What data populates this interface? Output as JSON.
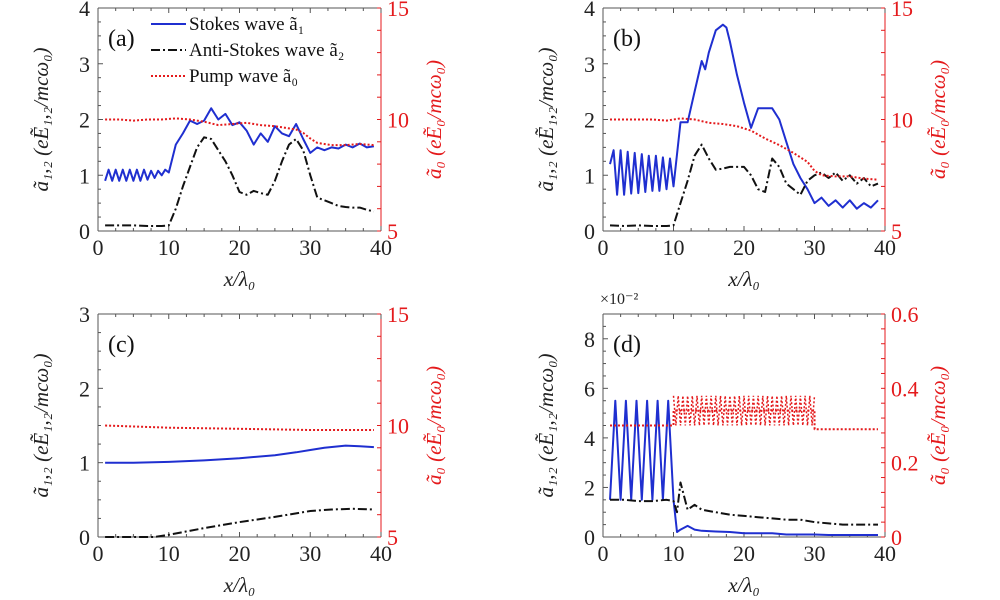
{
  "figure": {
    "legend": [
      {
        "label": "Stokes wave ã₁",
        "series": "stokes"
      },
      {
        "label": "Anti-Stokes wave ã₂",
        "series": "antistokes"
      },
      {
        "label": "Pump wave ã₀",
        "series": "pump"
      }
    ],
    "colors": {
      "stokes": "#1f2fd0",
      "antistokes": "#111111",
      "pump": "#e41a1c",
      "right_axis": "#e41a1c"
    },
    "xlabel": "x/λ₀",
    "ylabel_left": "ã₁,₂ (eẼ₁,₂/mcω₀)",
    "ylabel_right": "ã₀ (eẼ₀/mcω₀)"
  },
  "chart_data": [
    {
      "panel": "(a)",
      "type": "line",
      "xlim": [
        0,
        40
      ],
      "xticks": [
        0,
        10,
        20,
        30,
        40
      ],
      "ylim_left": [
        0,
        4
      ],
      "yticks_left": [
        0,
        1,
        2,
        3,
        4
      ],
      "ylim_right": [
        5,
        15
      ],
      "yticks_right": [
        5,
        10,
        15
      ],
      "xlabel": "x/λ₀",
      "ylabel": "ã₁,₂ (eẼ₁,₂/mcω₀)",
      "ylabel_right": "ã₀ (eẼ₀/mcω₀)",
      "legend": "top-left",
      "series": [
        {
          "name": "Stokes wave ã₁",
          "axis": "left",
          "style": "solid",
          "x": [
            1,
            1.5,
            2,
            2.5,
            3,
            3.5,
            4,
            4.5,
            5,
            5.5,
            6,
            6.5,
            7,
            7.5,
            8,
            8.5,
            9,
            9.5,
            10,
            11,
            12,
            13,
            14,
            15,
            16,
            17,
            18,
            19,
            20,
            21,
            22,
            23,
            24,
            25,
            26,
            27,
            28,
            29,
            30,
            31,
            32,
            33,
            34,
            35,
            36,
            37,
            38,
            39
          ],
          "y": [
            0.9,
            1.1,
            0.9,
            1.1,
            0.9,
            1.1,
            0.9,
            1.1,
            0.9,
            1.1,
            0.9,
            1.1,
            0.92,
            1.08,
            0.95,
            1.08,
            1.0,
            1.1,
            1.05,
            1.55,
            1.75,
            1.98,
            1.92,
            1.98,
            2.2,
            2.0,
            2.1,
            1.9,
            1.95,
            1.8,
            1.55,
            1.75,
            1.6,
            1.88,
            1.75,
            1.7,
            1.92,
            1.65,
            1.4,
            1.5,
            1.45,
            1.5,
            1.48,
            1.55,
            1.5,
            1.57,
            1.5,
            1.52
          ]
        },
        {
          "name": "Anti-Stokes wave ã₂",
          "axis": "left",
          "style": "dashdot",
          "x": [
            1,
            3,
            5,
            7,
            9,
            10,
            11,
            12,
            13,
            14,
            15,
            16,
            17,
            18,
            19,
            20,
            21,
            22,
            23,
            24,
            25,
            26,
            27,
            28,
            29,
            30,
            31,
            32,
            33,
            34,
            35,
            36,
            37,
            38,
            39
          ],
          "y": [
            0.1,
            0.1,
            0.1,
            0.09,
            0.09,
            0.1,
            0.4,
            0.8,
            1.15,
            1.5,
            1.68,
            1.65,
            1.45,
            1.25,
            1.0,
            0.7,
            0.65,
            0.72,
            0.68,
            0.65,
            0.9,
            1.25,
            1.55,
            1.65,
            1.45,
            1.0,
            0.6,
            0.55,
            0.5,
            0.45,
            0.43,
            0.42,
            0.42,
            0.38,
            0.35
          ]
        },
        {
          "name": "Pump wave ã₀",
          "axis": "right",
          "style": "dotted",
          "x": [
            1,
            3,
            5,
            7,
            9,
            11,
            13,
            15,
            17,
            19,
            21,
            23,
            25,
            27,
            28,
            29,
            30,
            31,
            33,
            35,
            37,
            39
          ],
          "y": [
            10.0,
            10.0,
            9.95,
            10.0,
            10.0,
            10.05,
            10.0,
            9.9,
            9.75,
            9.8,
            9.85,
            9.75,
            9.7,
            9.6,
            9.55,
            9.4,
            9.15,
            8.95,
            8.85,
            8.85,
            8.9,
            8.85
          ]
        }
      ]
    },
    {
      "panel": "(b)",
      "type": "line",
      "xlim": [
        0,
        40
      ],
      "xticks": [
        0,
        10,
        20,
        30,
        40
      ],
      "ylim_left": [
        0,
        4
      ],
      "yticks_left": [
        0,
        1,
        2,
        3,
        4
      ],
      "ylim_right": [
        5,
        15
      ],
      "yticks_right": [
        5,
        10,
        15
      ],
      "xlabel": "x/λ₀",
      "ylabel": "ã₁,₂ (eẼ₁,₂/mcω₀)",
      "ylabel_right": "ã₀ (eẼ₀/mcω₀)",
      "series": [
        {
          "name": "Stokes wave ã₁",
          "axis": "left",
          "style": "solid",
          "x": [
            1,
            1.5,
            2,
            2.5,
            3,
            3.5,
            4,
            4.5,
            5,
            5.5,
            6,
            6.5,
            7,
            7.5,
            8,
            8.5,
            9,
            9.5,
            10,
            11,
            12,
            13,
            14,
            14.5,
            15,
            16,
            17,
            17.5,
            18,
            19,
            20,
            21,
            22,
            23,
            24,
            25,
            26,
            27,
            28,
            29,
            30,
            31,
            32,
            33,
            34,
            35,
            36,
            37,
            38,
            39
          ],
          "y": [
            1.2,
            1.45,
            0.65,
            1.45,
            0.65,
            1.42,
            0.67,
            1.4,
            0.68,
            1.38,
            0.7,
            1.35,
            0.72,
            1.35,
            0.72,
            1.32,
            0.75,
            1.3,
            0.8,
            1.95,
            1.95,
            2.5,
            3.05,
            2.9,
            3.2,
            3.6,
            3.7,
            3.65,
            3.4,
            2.8,
            2.3,
            1.85,
            2.2,
            2.2,
            2.2,
            2.0,
            1.6,
            1.2,
            0.95,
            0.75,
            0.5,
            0.6,
            0.45,
            0.55,
            0.42,
            0.55,
            0.4,
            0.5,
            0.42,
            0.55
          ]
        },
        {
          "name": "Anti-Stokes wave ã₂",
          "axis": "left",
          "style": "dashdot",
          "x": [
            1,
            3,
            5,
            7,
            9,
            10,
            11,
            12,
            13,
            14,
            15,
            16,
            17,
            18,
            19,
            20,
            21,
            22,
            23,
            24,
            25,
            26,
            27,
            28,
            29,
            30,
            31,
            32,
            33,
            34,
            35,
            36,
            37,
            38,
            39
          ],
          "y": [
            0.1,
            0.09,
            0.1,
            0.09,
            0.09,
            0.1,
            0.5,
            0.9,
            1.35,
            1.55,
            1.3,
            1.1,
            1.12,
            1.15,
            1.15,
            1.15,
            1.0,
            0.75,
            0.7,
            1.3,
            1.15,
            0.85,
            0.75,
            0.65,
            0.9,
            1.0,
            1.05,
            0.95,
            1.05,
            0.9,
            1.0,
            0.85,
            0.95,
            0.8,
            0.85
          ]
        },
        {
          "name": "Pump wave ã₀",
          "axis": "right",
          "style": "dotted",
          "x": [
            1,
            3,
            5,
            7,
            9,
            11,
            13,
            15,
            17,
            19,
            21,
            23,
            25,
            27,
            29,
            30,
            31,
            33,
            35,
            37,
            39
          ],
          "y": [
            10.0,
            10.0,
            10.0,
            10.0,
            9.95,
            10.05,
            10.0,
            9.85,
            9.8,
            9.7,
            9.5,
            9.15,
            8.85,
            8.5,
            8.1,
            7.7,
            7.5,
            7.45,
            7.45,
            7.35,
            7.3
          ]
        }
      ]
    },
    {
      "panel": "(c)",
      "type": "line",
      "xlim": [
        0,
        40
      ],
      "xticks": [
        0,
        10,
        20,
        30,
        40
      ],
      "ylim_left": [
        0,
        3
      ],
      "yticks_left": [
        0,
        1,
        2,
        3
      ],
      "ylim_right": [
        5,
        15
      ],
      "yticks_right": [
        5,
        10,
        15
      ],
      "xlabel": "x/λ₀",
      "ylabel": "ã₁,₂ (eẼ₁,₂/mcω₀)",
      "ylabel_right": "ã₀ (eẼ₀/mcω₀)",
      "series": [
        {
          "name": "Stokes wave ã₁",
          "axis": "left",
          "style": "solid",
          "x": [
            1,
            5,
            10,
            15,
            20,
            25,
            28,
            30,
            32,
            35,
            37,
            39
          ],
          "y": [
            1.0,
            1.0,
            1.01,
            1.03,
            1.06,
            1.1,
            1.14,
            1.17,
            1.2,
            1.23,
            1.22,
            1.21
          ]
        },
        {
          "name": "Anti-Stokes wave ã₂",
          "axis": "left",
          "style": "dashdot",
          "x": [
            1,
            5,
            8,
            10,
            15,
            20,
            25,
            30,
            33,
            36,
            39
          ],
          "y": [
            0.0,
            0.0,
            0.0,
            0.03,
            0.12,
            0.2,
            0.27,
            0.35,
            0.37,
            0.38,
            0.37
          ]
        },
        {
          "name": "Pump wave ã₀",
          "axis": "right",
          "style": "dotted",
          "x": [
            1,
            10,
            20,
            30,
            39
          ],
          "y": [
            10.0,
            9.9,
            9.85,
            9.8,
            9.8
          ]
        }
      ]
    },
    {
      "panel": "(d)",
      "type": "line",
      "xlim": [
        0,
        40
      ],
      "xticks": [
        0,
        10,
        20,
        30,
        40
      ],
      "ylim_left": [
        0,
        9
      ],
      "yticks_left": [
        0,
        2,
        4,
        6,
        8
      ],
      "left_multiplier": "×10⁻²",
      "ylim_right": [
        0,
        0.6
      ],
      "yticks_right": [
        0,
        0.2,
        0.4,
        0.6
      ],
      "xlabel": "x/λ₀",
      "ylabel": "ã₁,₂ (eẼ₁,₂/mcω₀)",
      "ylabel_right": "ã₀ (eẼ₀/mcω₀)",
      "series": [
        {
          "name": "Stokes wave ã₁",
          "axis": "left",
          "style": "solid",
          "x": [
            1,
            1.75,
            2.5,
            3.25,
            4,
            4.75,
            5.5,
            6.25,
            7,
            7.75,
            8.5,
            9.25,
            10,
            10.5,
            11,
            12,
            13,
            14,
            16,
            18,
            20,
            22,
            24,
            26,
            28,
            30,
            32,
            34,
            36,
            39
          ],
          "y": [
            1.5,
            5.5,
            1.5,
            5.5,
            1.5,
            5.5,
            1.5,
            5.5,
            1.5,
            5.5,
            1.5,
            5.5,
            1.5,
            0.2,
            0.3,
            0.45,
            0.3,
            0.25,
            0.22,
            0.2,
            0.15,
            0.15,
            0.15,
            0.1,
            0.1,
            0.1,
            0.08,
            0.08,
            0.08,
            0.08
          ]
        },
        {
          "name": "Anti-Stokes wave ã₂",
          "axis": "left",
          "style": "dashdot",
          "x": [
            1,
            3,
            5,
            7,
            9,
            10,
            10.5,
            11,
            12,
            13,
            14,
            15,
            16,
            18,
            20,
            22,
            24,
            26,
            28,
            30,
            32,
            34,
            36,
            39
          ],
          "y": [
            1.5,
            1.5,
            1.45,
            1.45,
            1.5,
            1.45,
            1.0,
            2.2,
            1.1,
            1.3,
            1.1,
            1.05,
            1.0,
            0.9,
            0.85,
            0.8,
            0.75,
            0.7,
            0.7,
            0.6,
            0.55,
            0.5,
            0.5,
            0.5
          ]
        },
        {
          "name": "Pump wave ã₀",
          "axis": "right",
          "style": "dotted",
          "x": [
            1,
            5,
            10,
            10.01,
            30,
            30.01,
            39
          ],
          "y": [
            0.3,
            0.3,
            0.3,
            0.34,
            0.34,
            0.29,
            0.29
          ],
          "oscillation_band_x": [
            10,
            30
          ],
          "oscillation_band_y": [
            0.3,
            0.38
          ]
        }
      ]
    }
  ]
}
